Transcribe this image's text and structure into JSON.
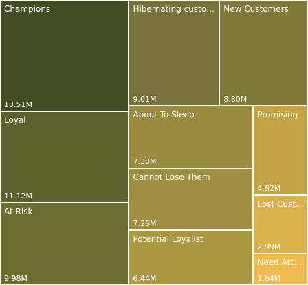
{
  "chart_data": {
    "type": "treemap",
    "unit": "M",
    "items": [
      {
        "name": "Champions",
        "display_name": "Champions",
        "value": 13.51,
        "value_label": "13.51M",
        "color": "#434c24"
      },
      {
        "name": "Loyal",
        "display_name": "Loyal",
        "value": 11.12,
        "value_label": "11.12M",
        "color": "#5c622c"
      },
      {
        "name": "At Risk",
        "display_name": "At Risk",
        "value": 9.98,
        "value_label": "9.98M",
        "color": "#6c6d31"
      },
      {
        "name": "Hibernating customers",
        "display_name": "Hibernating customers",
        "value": 9.01,
        "value_label": "9.01M",
        "color": "#78733a"
      },
      {
        "name": "New Customers",
        "display_name": "New Customers",
        "value": 8.8,
        "value_label": "8.80M",
        "color": "#817839"
      },
      {
        "name": "About To Sleep",
        "display_name": "About To Sleep",
        "value": 7.33,
        "value_label": "7.33M",
        "color": "#9a8b3e"
      },
      {
        "name": "Cannot Lose Them",
        "display_name": "Cannot Lose Them",
        "value": 7.26,
        "value_label": "7.26M",
        "color": "#a08e40"
      },
      {
        "name": "Potential Loyalist",
        "display_name": "Potential Loyalist",
        "value": 6.44,
        "value_label": "6.44M",
        "color": "#ad9842"
      },
      {
        "name": "Promising",
        "display_name": "Promising",
        "value": 4.62,
        "value_label": "4.62M",
        "color": "#c5a447"
      },
      {
        "name": "Lost Customers",
        "display_name": "Lost Custo...",
        "value": 2.99,
        "value_label": "2.99M",
        "color": "#dbb14c"
      },
      {
        "name": "Need Attention",
        "display_name": "Need Atten...",
        "value": 1.64,
        "value_label": "1.64M",
        "color": "#f0bc52"
      }
    ]
  }
}
